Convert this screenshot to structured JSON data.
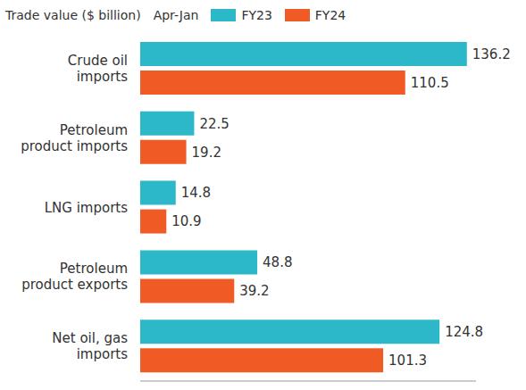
{
  "chart_data": {
    "type": "bar",
    "orientation": "horizontal",
    "title": "Trade value ($ billion)",
    "subtitle": "Apr-Jan",
    "categories": [
      "Crude oil imports",
      "Petroleum product imports",
      "LNG imports",
      "Petroleum product exports",
      "Net oil, gas imports"
    ],
    "series": [
      {
        "name": "FY23",
        "color": "#2db8c9",
        "values": [
          136.2,
          22.5,
          14.8,
          48.8,
          124.8
        ]
      },
      {
        "name": "FY24",
        "color": "#f05a24",
        "values": [
          110.5,
          19.2,
          10.9,
          39.2,
          101.3
        ]
      }
    ],
    "xlim": [
      0,
      140
    ],
    "data_labels": true,
    "tick_labels": "y",
    "legend": "top",
    "grid": false
  }
}
